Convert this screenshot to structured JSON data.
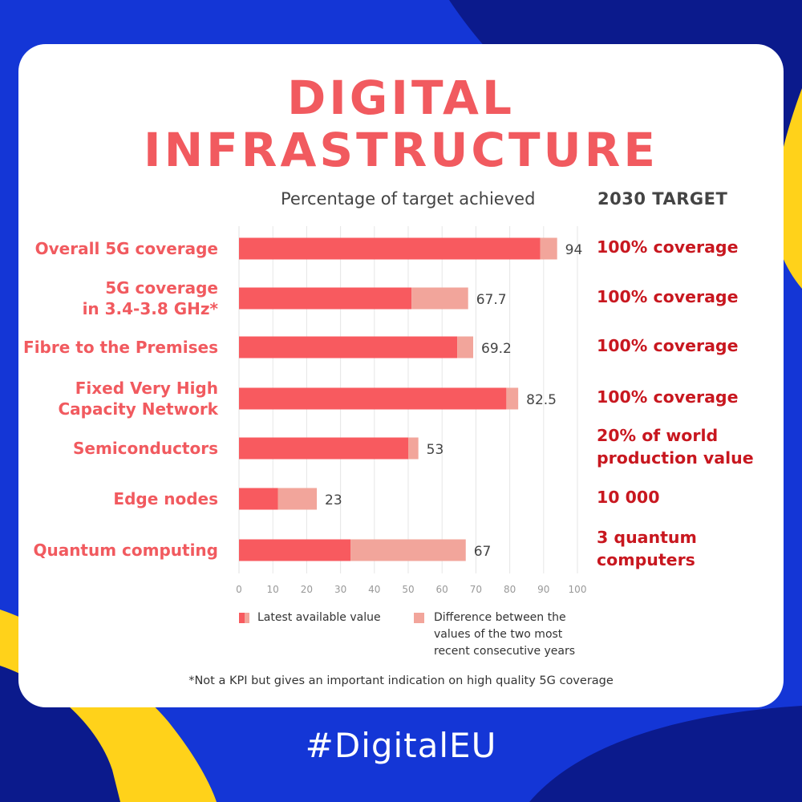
{
  "title_line1": "DIGITAL",
  "title_line2": "INFRASTRUCTURE",
  "percentage_header": "Percentage of target achieved",
  "target_header": "2030 TARGET",
  "footnote": "*Not a KPI but gives an important indication on high quality 5G coverage",
  "hashtag": "#DigitalEU",
  "colors": {
    "latest": "#f85a5f",
    "difference": "#f2a59b",
    "title": "#f15a5f",
    "target": "#c8171f",
    "blue": "#1436d6",
    "navy": "#0b1a8c",
    "yellow": "#ffd21a"
  },
  "chart_data": {
    "type": "bar",
    "orientation": "horizontal",
    "stacked": true,
    "categories": [
      "Overall 5G coverage",
      "5G coverage\nin 3.4-3.8 GHz*",
      "Fibre to the Premises",
      "Fixed Very  High\nCapacity Network",
      "Semiconductors",
      "Edge nodes",
      "Quantum computing"
    ],
    "series": [
      {
        "name": "Latest available value",
        "values": [
          89,
          51,
          64.5,
          79,
          50,
          11.5,
          33
        ]
      },
      {
        "name": "Difference between the\nvalues of the two most\nrecent consecutive years",
        "values": [
          5,
          16.7,
          4.7,
          3.5,
          3,
          11.5,
          34
        ]
      }
    ],
    "totals": [
      94,
      67.7,
      69.2,
      82.5,
      53,
      23,
      67
    ],
    "value_labels": [
      "94",
      "67.7",
      "69.2",
      "82.5",
      "53",
      "23",
      "67"
    ],
    "xlim": [
      0,
      100
    ],
    "xticks": [
      0,
      10,
      20,
      30,
      40,
      50,
      60,
      70,
      80,
      90,
      100
    ],
    "grid": "vertical-x",
    "legend": "bottom",
    "targets": [
      "100% coverage",
      "100% coverage",
      "100% coverage",
      "100% coverage",
      "20% of world\nproduction value",
      "10 000",
      "3 quantum\ncomputers"
    ]
  }
}
